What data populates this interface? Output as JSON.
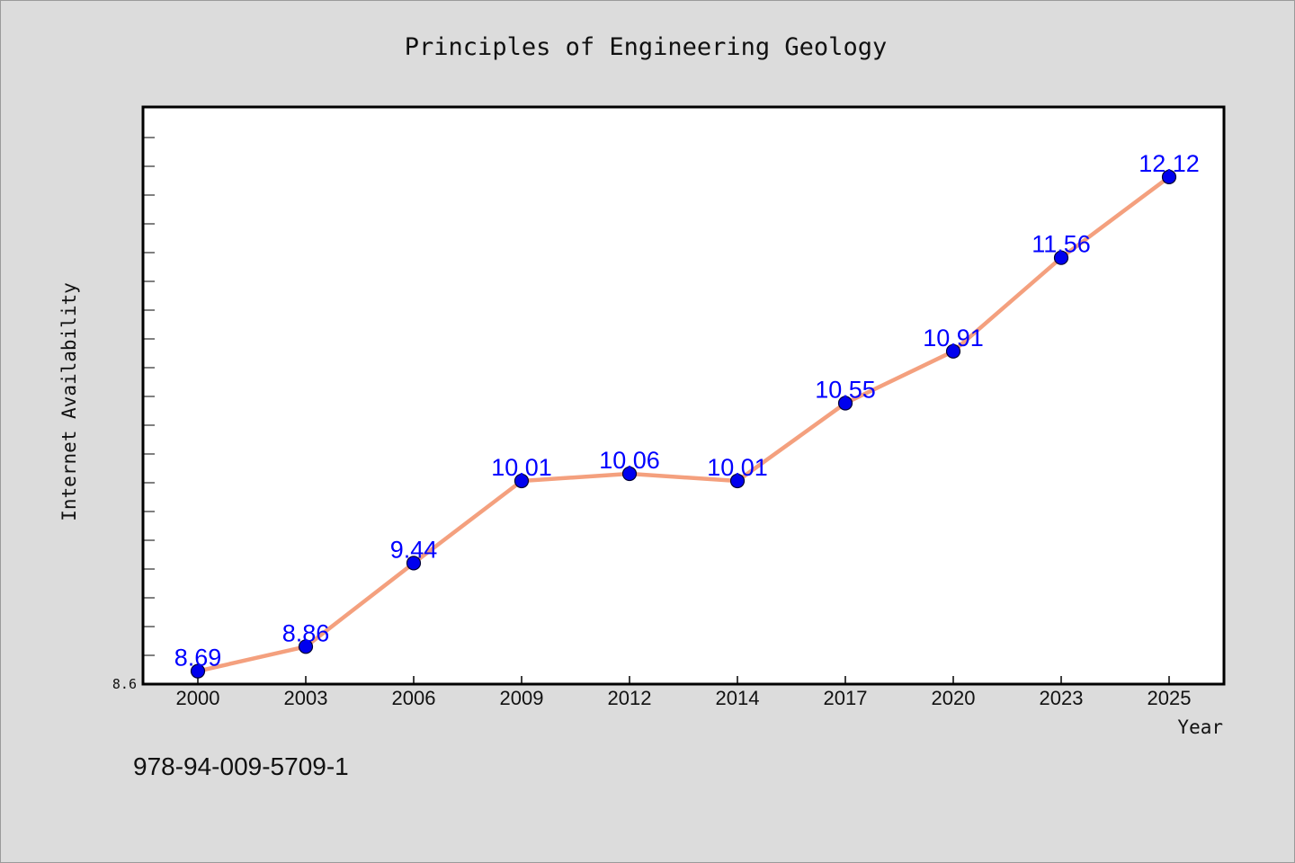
{
  "chart_data": {
    "type": "line",
    "title": "Principles of Engineering Geology",
    "xlabel": "Year",
    "ylabel": "Internet Availability",
    "categories": [
      "2000",
      "2003",
      "2006",
      "2009",
      "2012",
      "2014",
      "2017",
      "2020",
      "2023",
      "2025"
    ],
    "series": [
      {
        "values": [
          8.69,
          8.86,
          9.44,
          10.01,
          10.06,
          10.01,
          10.55,
          10.91,
          11.56,
          12.12
        ],
        "labels": [
          "8.69",
          "8.86",
          "9.44",
          "10.01",
          "10.06",
          "10.01",
          "10.55",
          "10.91",
          "11.56",
          "12.12"
        ],
        "line_color": "#f4a07e",
        "marker_color": "#0000ee",
        "label_color": "#0000ff"
      }
    ],
    "ylim": [
      8.6,
      12.6
    ],
    "y_tick_labels": [
      "8.6"
    ],
    "grid": false,
    "legend": "none"
  },
  "footer": {
    "isbn": "978-94-009-5709-1"
  }
}
